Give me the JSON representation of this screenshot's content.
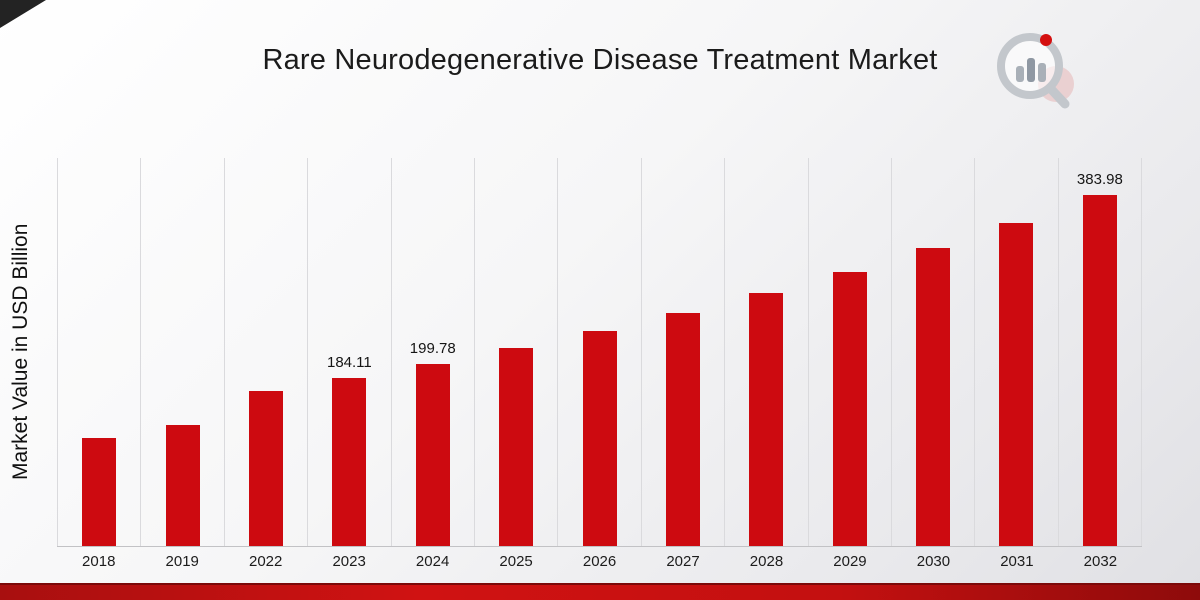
{
  "chart_data": {
    "type": "bar",
    "title": "Rare Neurodegenerative Disease Treatment Market",
    "ylabel": "Market Value in USD Billion",
    "categories": [
      "2018",
      "2019",
      "2022",
      "2023",
      "2024",
      "2025",
      "2026",
      "2027",
      "2028",
      "2029",
      "2030",
      "2031",
      "2032"
    ],
    "values": [
      117.9,
      132.9,
      169.7,
      184.11,
      199.78,
      216.8,
      235.2,
      255.2,
      277.0,
      300.5,
      326.1,
      353.9,
      383.98
    ],
    "data_labels": [
      "",
      "",
      "",
      "184.11",
      "199.78",
      "",
      "",
      "",
      "",
      "",
      "",
      "",
      "383.98"
    ],
    "ylim": [
      0,
      425
    ],
    "grid": "vertical-gridlines-between-categories",
    "legend": "none",
    "bar_color": "#cd0a10"
  },
  "page": {
    "accent_red": "#cd0a10",
    "footer_band_color": "#b01010",
    "corner_accent_color": "#232323",
    "logo_icon": "magnifier-bar-chart-logo"
  }
}
